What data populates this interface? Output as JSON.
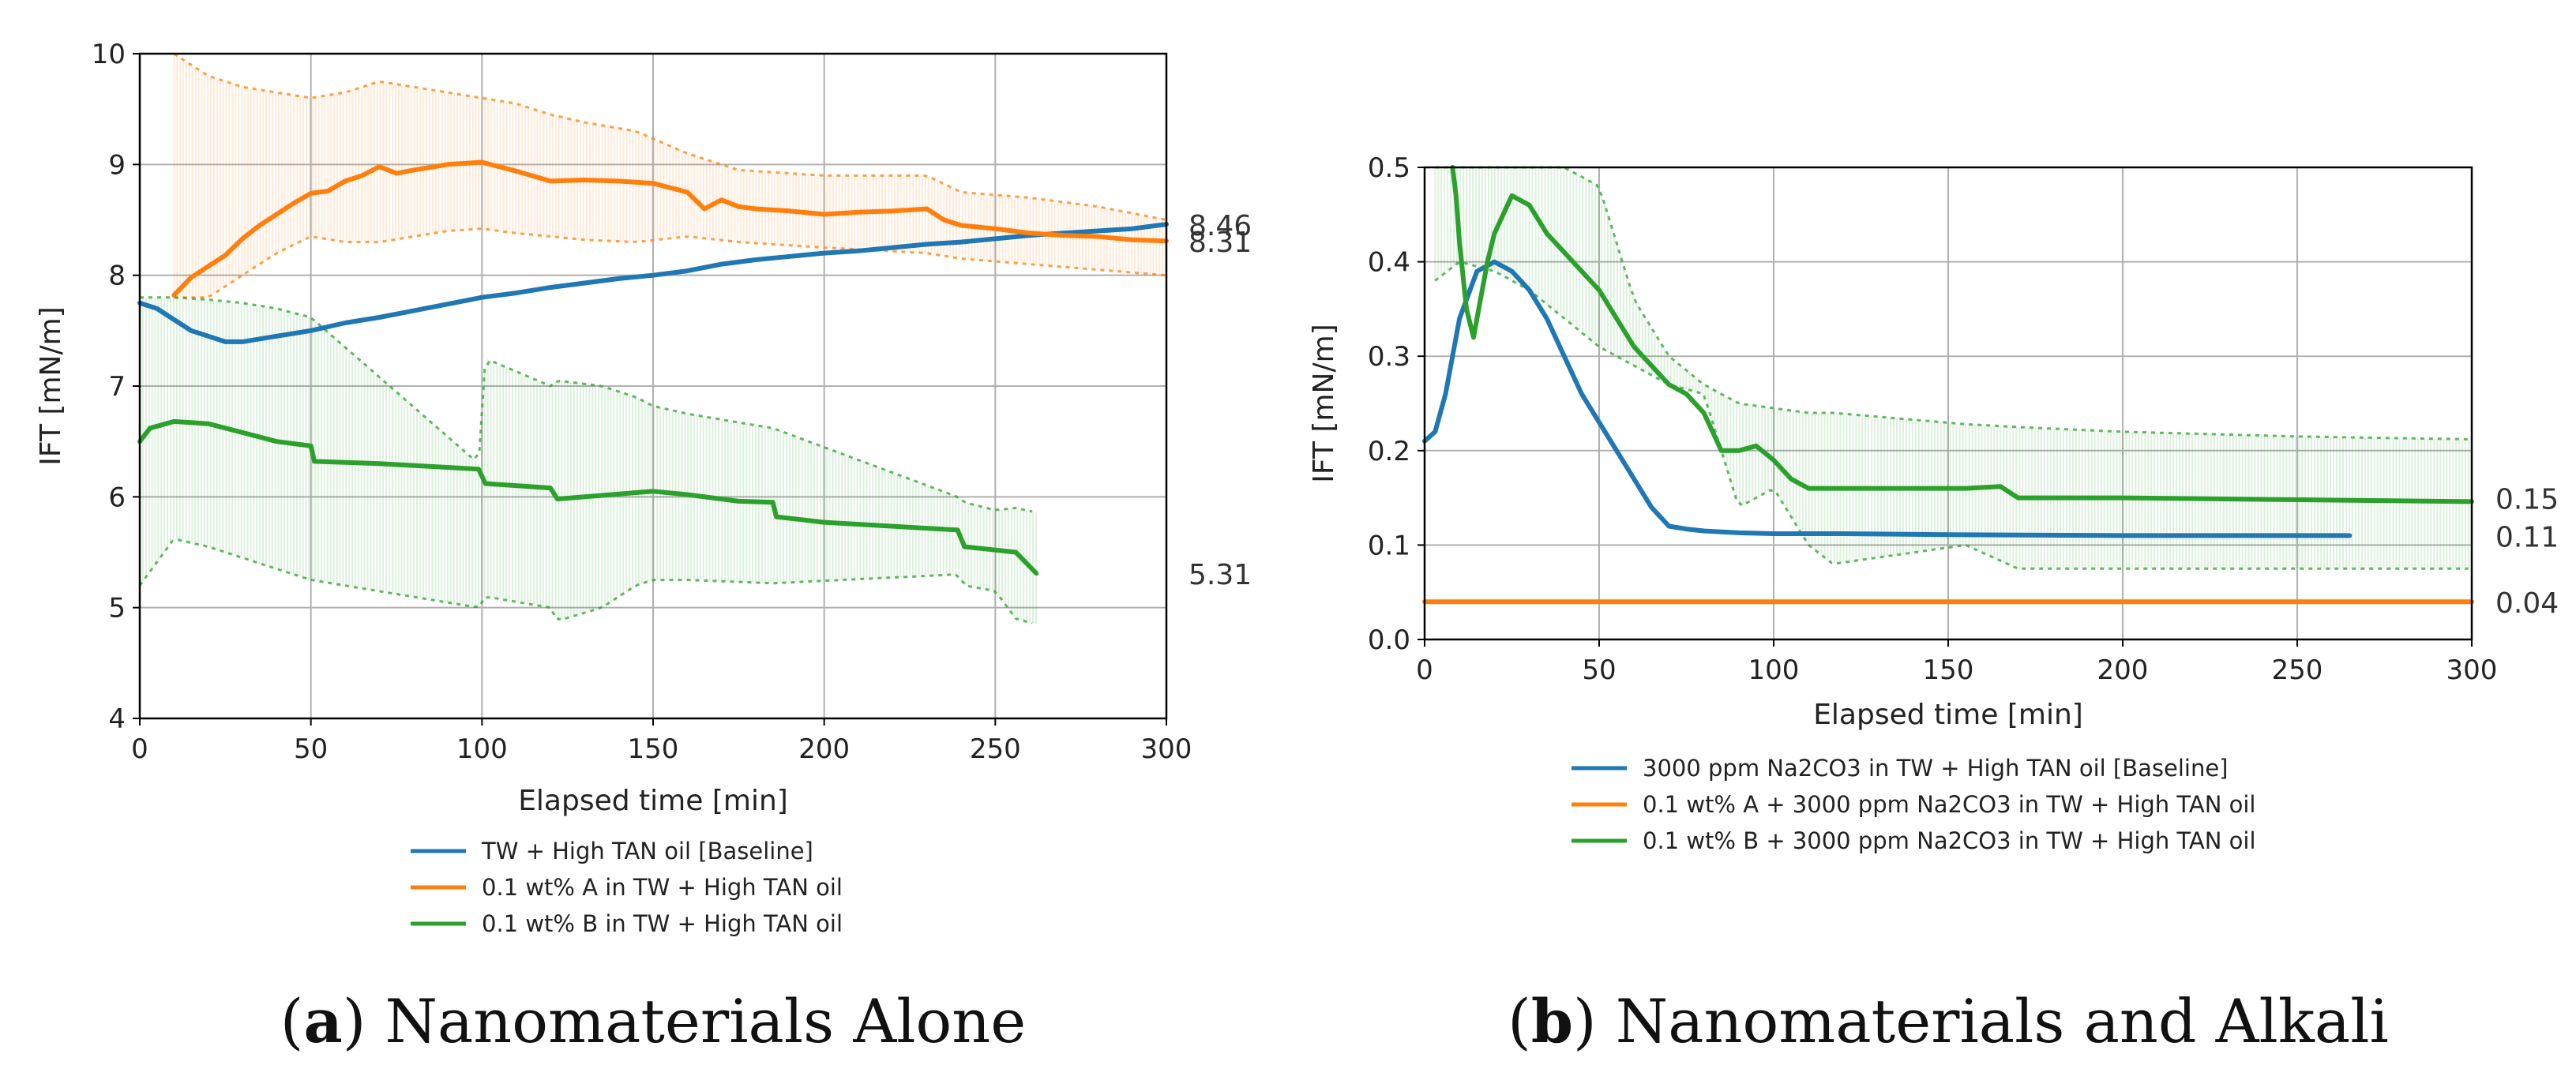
{
  "chart_data": [
    {
      "type": "line",
      "caption": {
        "letter": "a",
        "text": "Nanomaterials Alone"
      },
      "xlabel": "Elapsed time [min]",
      "ylabel": "IFT [mN/m]",
      "xlim": [
        0,
        300
      ],
      "ylim": [
        4,
        10
      ],
      "xticks": [
        0,
        50,
        100,
        150,
        200,
        250,
        300
      ],
      "yticks": [
        4,
        5,
        6,
        7,
        8,
        9,
        10
      ],
      "grid": true,
      "legend_position": "below",
      "end_labels": [
        "8.46",
        "8.31",
        "5.31"
      ],
      "end_label_values": [
        8.46,
        8.31,
        5.31
      ],
      "series": [
        {
          "name": "TW + High TAN oil [Baseline]",
          "color": "#1f77b4",
          "x": [
            0,
            5,
            10,
            15,
            20,
            25,
            30,
            40,
            50,
            60,
            70,
            80,
            90,
            100,
            110,
            120,
            130,
            140,
            150,
            160,
            170,
            180,
            190,
            200,
            210,
            220,
            230,
            240,
            250,
            260,
            270,
            280,
            290,
            300
          ],
          "y": [
            7.75,
            7.7,
            7.6,
            7.5,
            7.45,
            7.4,
            7.4,
            7.45,
            7.5,
            7.57,
            7.62,
            7.68,
            7.74,
            7.8,
            7.84,
            7.89,
            7.93,
            7.97,
            8.0,
            8.04,
            8.1,
            8.14,
            8.17,
            8.2,
            8.22,
            8.25,
            8.28,
            8.3,
            8.33,
            8.36,
            8.38,
            8.4,
            8.42,
            8.46
          ]
        },
        {
          "name": "0.1 wt% A in TW + High TAN oil",
          "color": "#ff7f0e",
          "x": [
            10,
            15,
            20,
            25,
            30,
            35,
            40,
            45,
            50,
            55,
            60,
            65,
            70,
            75,
            80,
            90,
            100,
            110,
            120,
            130,
            140,
            150,
            160,
            165,
            170,
            175,
            180,
            190,
            200,
            210,
            220,
            230,
            235,
            240,
            250,
            260,
            270,
            280,
            290,
            300
          ],
          "y": [
            7.82,
            7.98,
            8.08,
            8.18,
            8.33,
            8.45,
            8.55,
            8.65,
            8.74,
            8.76,
            8.85,
            8.9,
            8.98,
            8.92,
            8.95,
            9.0,
            9.02,
            8.94,
            8.85,
            8.86,
            8.85,
            8.83,
            8.75,
            8.6,
            8.68,
            8.62,
            8.6,
            8.58,
            8.55,
            8.57,
            8.58,
            8.6,
            8.5,
            8.45,
            8.42,
            8.38,
            8.36,
            8.35,
            8.32,
            8.31
          ]
        },
        {
          "name": "0.1 wt% B in TW + High TAN oil",
          "color": "#2ca02c",
          "x": [
            0,
            3,
            10,
            20,
            30,
            40,
            50,
            51,
            70,
            99,
            101,
            120,
            122,
            130,
            150,
            160,
            175,
            185,
            186,
            200,
            239,
            241,
            250,
            256,
            262
          ],
          "y": [
            6.5,
            6.62,
            6.68,
            6.66,
            6.58,
            6.5,
            6.46,
            6.32,
            6.3,
            6.25,
            6.12,
            6.08,
            5.98,
            6.0,
            6.05,
            6.02,
            5.96,
            5.95,
            5.82,
            5.77,
            5.7,
            5.55,
            5.52,
            5.5,
            5.31
          ]
        }
      ],
      "error_band_B": {
        "upper_x": [
          0,
          10,
          20,
          30,
          40,
          50,
          99,
          101,
          120,
          122,
          135,
          145,
          150,
          160,
          185,
          239,
          241,
          250,
          256,
          262
        ],
        "upper_y": [
          7.8,
          7.8,
          7.78,
          7.75,
          7.7,
          7.62,
          6.3,
          7.25,
          7.0,
          7.05,
          7.0,
          6.9,
          6.82,
          6.75,
          6.62,
          6.0,
          5.95,
          5.88,
          5.9,
          5.86
        ],
        "lower_x": [
          0,
          10,
          20,
          30,
          40,
          50,
          99,
          101,
          120,
          122,
          135,
          145,
          150,
          160,
          185,
          239,
          241,
          250,
          256,
          262
        ],
        "lower_y": [
          5.2,
          5.62,
          5.55,
          5.45,
          5.35,
          5.25,
          5.0,
          5.1,
          5.0,
          4.88,
          5.0,
          5.2,
          5.25,
          5.25,
          5.22,
          5.3,
          5.2,
          5.15,
          4.9,
          4.85
        ]
      },
      "error_band_A": {
        "upper_x": [
          10,
          20,
          30,
          40,
          50,
          60,
          70,
          80,
          90,
          100,
          110,
          120,
          130,
          145,
          160,
          175,
          200,
          230,
          240,
          260,
          280,
          300
        ],
        "upper_y": [
          10.0,
          9.8,
          9.7,
          9.65,
          9.6,
          9.65,
          9.75,
          9.7,
          9.65,
          9.6,
          9.55,
          9.45,
          9.38,
          9.3,
          9.1,
          8.95,
          8.9,
          8.9,
          8.75,
          8.7,
          8.62,
          8.5
        ],
        "lower_x": [
          10,
          20,
          30,
          40,
          50,
          60,
          70,
          80,
          90,
          100,
          110,
          120,
          130,
          145,
          160,
          175,
          200,
          230,
          240,
          260,
          280,
          300
        ],
        "lower_y": [
          7.8,
          7.8,
          8.0,
          8.2,
          8.35,
          8.3,
          8.3,
          8.35,
          8.4,
          8.42,
          8.38,
          8.35,
          8.32,
          8.3,
          8.35,
          8.3,
          8.25,
          8.2,
          8.15,
          8.1,
          8.05,
          8.0
        ]
      }
    },
    {
      "type": "line",
      "caption": {
        "letter": "b",
        "text": "Nanomaterials and Alkali"
      },
      "xlabel": "Elapsed time [min]",
      "ylabel": "IFT [mN/m]",
      "xlim": [
        0,
        300
      ],
      "ylim": [
        0.0,
        0.5
      ],
      "xticks": [
        0,
        50,
        100,
        150,
        200,
        250,
        300
      ],
      "yticks": [
        0.0,
        0.1,
        0.2,
        0.3,
        0.4,
        0.5
      ],
      "ytick_labels": [
        "0.0",
        "0.1",
        "0.2",
        "0.3",
        "0.4",
        "0.5"
      ],
      "grid": true,
      "legend_position": "below",
      "end_labels": [
        "0.15",
        "0.11",
        "0.04"
      ],
      "end_label_values": [
        0.15,
        0.11,
        0.04
      ],
      "series": [
        {
          "name": "3000 ppm Na2CO3 in TW + High TAN oil [Baseline]",
          "color": "#1f77b4",
          "x": [
            0,
            3,
            6,
            10,
            15,
            20,
            25,
            30,
            35,
            40,
            45,
            50,
            55,
            60,
            65,
            70,
            75,
            80,
            90,
            100,
            120,
            150,
            200,
            250,
            265
          ],
          "y": [
            0.21,
            0.22,
            0.26,
            0.34,
            0.39,
            0.4,
            0.39,
            0.37,
            0.34,
            0.3,
            0.26,
            0.23,
            0.2,
            0.17,
            0.14,
            0.12,
            0.117,
            0.115,
            0.113,
            0.112,
            0.112,
            0.111,
            0.11,
            0.11,
            0.11
          ]
        },
        {
          "name": "0.1 wt% A + 3000 ppm Na2CO3 in TW + High TAN oil",
          "color": "#ff7f0e",
          "x": [
            0,
            300
          ],
          "y": [
            0.04,
            0.04
          ]
        },
        {
          "name": "0.1 wt% B + 3000 ppm Na2CO3 in TW + High TAN oil",
          "color": "#2ca02c",
          "x": [
            8,
            9,
            10,
            12,
            14,
            16,
            18,
            20,
            25,
            30,
            35,
            40,
            45,
            50,
            55,
            60,
            65,
            70,
            75,
            80,
            85,
            90,
            95,
            100,
            105,
            110,
            120,
            150,
            155,
            165,
            170,
            200,
            250,
            300
          ],
          "y": [
            0.5,
            0.47,
            0.42,
            0.35,
            0.32,
            0.36,
            0.4,
            0.43,
            0.47,
            0.46,
            0.43,
            0.41,
            0.39,
            0.37,
            0.34,
            0.31,
            0.29,
            0.27,
            0.26,
            0.24,
            0.2,
            0.2,
            0.205,
            0.19,
            0.17,
            0.16,
            0.16,
            0.16,
            0.16,
            0.162,
            0.15,
            0.15,
            0.148,
            0.146
          ]
        }
      ],
      "error_band_B": {
        "upper_x": [
          3,
          10,
          20,
          30,
          40,
          50,
          60,
          70,
          80,
          90,
          100,
          110,
          117,
          155,
          170,
          200,
          250,
          300
        ],
        "upper_y": [
          0.5,
          0.5,
          0.5,
          0.5,
          0.5,
          0.48,
          0.36,
          0.3,
          0.27,
          0.25,
          0.245,
          0.24,
          0.24,
          0.228,
          0.225,
          0.22,
          0.215,
          0.212
        ],
        "lower_x": [
          3,
          10,
          20,
          30,
          40,
          50,
          60,
          70,
          80,
          90,
          100,
          110,
          117,
          155,
          170,
          200,
          250,
          300
        ],
        "lower_y": [
          0.38,
          0.4,
          0.39,
          0.37,
          0.34,
          0.31,
          0.29,
          0.27,
          0.26,
          0.14,
          0.16,
          0.1,
          0.08,
          0.1,
          0.075,
          0.075,
          0.075,
          0.075
        ]
      }
    }
  ]
}
